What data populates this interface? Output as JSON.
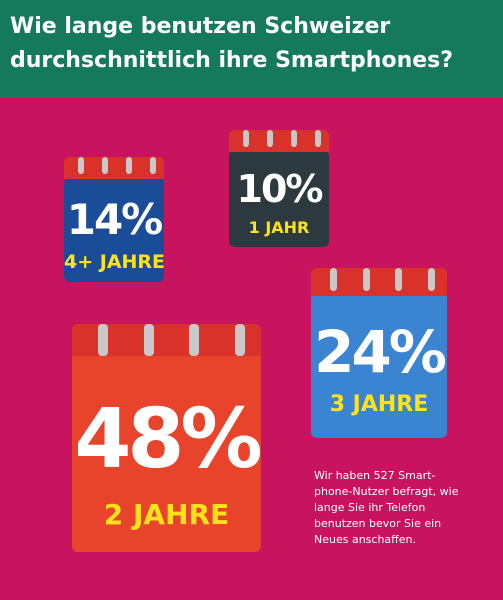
{
  "header": {
    "title_line1": "Wie lange benutzen Schweizer",
    "title_line2": "durchschnittlich ihre Smartphones?",
    "background": "#157a5b"
  },
  "colors": {
    "page_background": "#c8135f",
    "calendar_top": "#d9322b",
    "calendar_ring": "#c9c9c9",
    "label_yellow": "#ffe21a"
  },
  "chart_data": {
    "type": "bar",
    "title": "Wie lange benutzen Schweizer durchschnittlich ihre Smartphones?",
    "categories": [
      "4+ JAHRE",
      "1 JAHR",
      "3 JAHRE",
      "2 JAHRE"
    ],
    "values": [
      14,
      10,
      24,
      48
    ],
    "value_labels": [
      "14%",
      "10%",
      "24%",
      "48%"
    ],
    "unit": "%",
    "series_colors": [
      "#1b4c97",
      "#2c3a40",
      "#3b84d1",
      "#e8442b"
    ]
  },
  "note": {
    "lines": [
      "Wir haben 527 Smart-",
      "phone-Nutzer befragt, wie",
      "lange Sie ihr Telefon",
      "benutzen bevor Sie ein",
      "Neues anschaffen."
    ]
  }
}
